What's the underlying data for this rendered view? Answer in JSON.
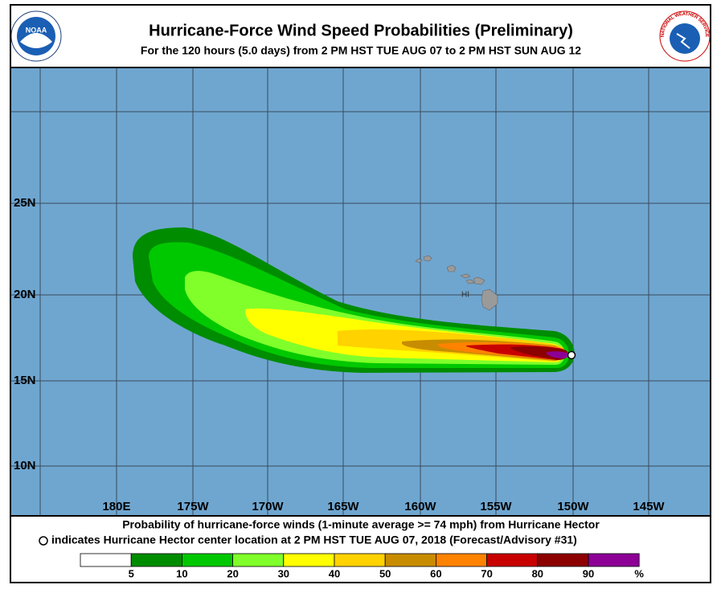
{
  "header": {
    "title": "Hurricane-Force Wind Speed Probabilities (Preliminary)",
    "subtitle": "For the 120 hours (5.0 days) from 2 PM HST TUE AUG 07 to 2 PM HST SUN AUG 12"
  },
  "logos": {
    "noaa": "NOAA",
    "nws": "NATIONAL WEATHER SERVICE"
  },
  "map": {
    "lat_labels": [
      "25N",
      "20N",
      "15N",
      "10N"
    ],
    "lon_labels": [
      "180E",
      "175W",
      "170W",
      "165W",
      "160W",
      "155W",
      "150W",
      "145W"
    ],
    "place_label": "HI"
  },
  "footer": {
    "line1": "Probability of hurricane-force winds (1-minute average >= 74 mph) from Hurricane Hector",
    "line2": "indicates Hurricane Hector center location at 2 PM HST TUE AUG 07, 2018 (Forecast/Advisory #31)"
  },
  "legend": {
    "colors": [
      "#ffffff",
      "#008c00",
      "#00c800",
      "#80ff2a",
      "#ffff00",
      "#ffd200",
      "#c88c00",
      "#ff8200",
      "#c80000",
      "#8c0000",
      "#8c0096"
    ],
    "thresholds": [
      5,
      10,
      20,
      30,
      40,
      50,
      60,
      70,
      80,
      90
    ],
    "unit": "%"
  }
}
